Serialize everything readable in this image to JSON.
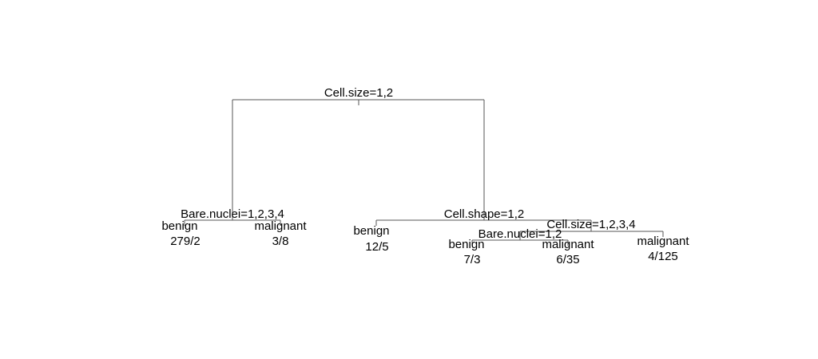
{
  "tree": {
    "splits": {
      "root": "Cell.size=1,2",
      "left": "Bare.nuclei=1,2,3,4",
      "right": "Cell.shape=1,2",
      "right_right": "Cell.size=1,2,3,4",
      "right_right_left": "Bare.nuclei=1,2"
    },
    "leaves": {
      "l1": {
        "class": "benign",
        "counts": "279/2"
      },
      "l2": {
        "class": "malignant",
        "counts": "3/8"
      },
      "l3": {
        "class": "benign",
        "counts": "12/5"
      },
      "l4": {
        "class": "benign",
        "counts": "7/3"
      },
      "l5": {
        "class": "malignant",
        "counts": "6/35"
      },
      "l6": {
        "class": "malignant",
        "counts": "4/125"
      }
    }
  }
}
